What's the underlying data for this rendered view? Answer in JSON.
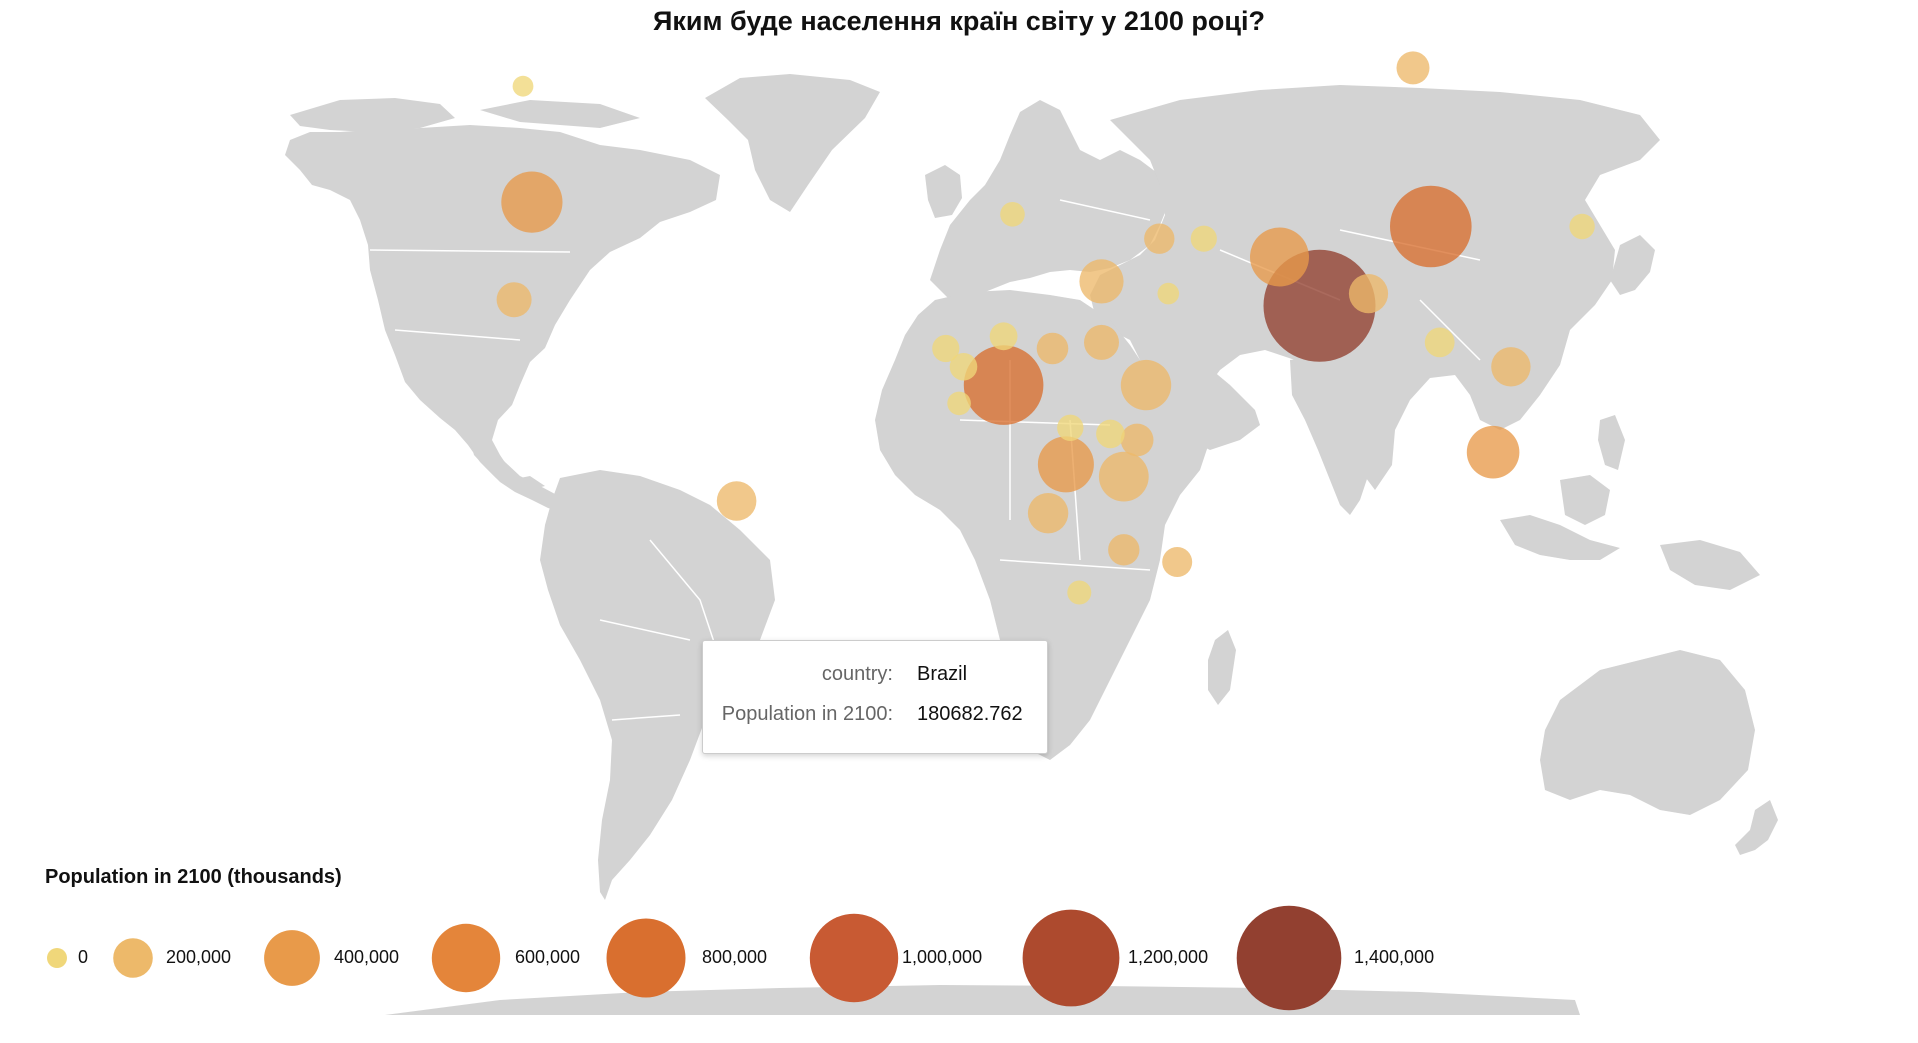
{
  "title": "Яким буде населення країн світу у 2100 році?",
  "colors": {
    "land": "#d3d3d3",
    "ramp": [
      "#f0d77a",
      "#edb96a",
      "#e89a4a",
      "#e4853a",
      "#d96f2f",
      "#c85a33",
      "#ad4a2e",
      "#924030"
    ]
  },
  "tooltip": {
    "country_key": "country:",
    "country_value": "Brazil",
    "population_key": "Population in 2100:",
    "population_value": "180682.762"
  },
  "legend": {
    "title": "Population in 2100 (thousands)",
    "items": [
      {
        "value": 0,
        "label": "0"
      },
      {
        "value": 200000,
        "label": "200,000"
      },
      {
        "value": 400000,
        "label": "400,000"
      },
      {
        "value": 600000,
        "label": "600,000"
      },
      {
        "value": 800000,
        "label": "800,000"
      },
      {
        "value": 1000000,
        "label": "1,000,000"
      },
      {
        "value": 1200000,
        "label": "1,200,000"
      },
      {
        "value": 1400000,
        "label": "1,400,000"
      }
    ]
  },
  "chart_data": {
    "type": "bubble-map",
    "size_metric": "Population in 2100 (thousands)",
    "highlighted_country": "Brazil",
    "points": [
      {
        "lat": 22,
        "lon": 79,
        "value": 1450000
      },
      {
        "lat": 35,
        "lon": 104,
        "value": 771000
      },
      {
        "lat": 9,
        "lon": 8,
        "value": 733000
      },
      {
        "lat": 30,
        "lon": 70,
        "value": 403000
      },
      {
        "lat": 39,
        "lon": -98,
        "value": 434000
      },
      {
        "lat": -4,
        "lon": 22,
        "value": 362000
      },
      {
        "lat": 9,
        "lon": 40,
        "value": 294000
      },
      {
        "lat": -6,
        "lon": 35,
        "value": 286000
      },
      {
        "lat": -2,
        "lon": 118,
        "value": 321000
      },
      {
        "lat": 26,
        "lon": 30,
        "value": 225000
      },
      {
        "lat": -12,
        "lon": 18,
        "value": 188000
      },
      {
        "lat": -10,
        "lon": -52,
        "value": 180683
      },
      {
        "lat": 12,
        "lon": 122,
        "value": 180000
      },
      {
        "lat": 24,
        "lon": 90,
        "value": 177000
      },
      {
        "lat": 23,
        "lon": -102,
        "value": 141000
      },
      {
        "lat": 16,
        "lon": 30,
        "value": 142000
      },
      {
        "lat": 15,
        "lon": 19,
        "value": 115000
      },
      {
        "lat": 61,
        "lon": 100,
        "value": 126000
      },
      {
        "lat": 16,
        "lon": 106,
        "value": 103000
      },
      {
        "lat": 0,
        "lon": 38,
        "value": 125000
      },
      {
        "lat": 17,
        "lon": 8,
        "value": 89000
      },
      {
        "lat": 33,
        "lon": 53,
        "value": 79000
      },
      {
        "lat": 33,
        "lon": 43,
        "value": 107000
      },
      {
        "lat": 1,
        "lon": 32,
        "value": 94000
      },
      {
        "lat": -18,
        "lon": 35,
        "value": 114000
      },
      {
        "lat": 12,
        "lon": -1,
        "value": 88000
      },
      {
        "lat": -20,
        "lon": 47,
        "value": 104000
      },
      {
        "lat": 2,
        "lon": 23,
        "value": 80000
      },
      {
        "lat": 15,
        "lon": -5,
        "value": 86000
      },
      {
        "lat": 35,
        "lon": 138,
        "value": 75000
      },
      {
        "lat": 37,
        "lon": 10,
        "value": 70000
      },
      {
        "lat": 6,
        "lon": -2,
        "value": 64000
      },
      {
        "lat": 24,
        "lon": 45,
        "value": 54000
      },
      {
        "lat": 58,
        "lon": -100,
        "value": 50000
      },
      {
        "lat": -25,
        "lon": 25,
        "value": 67000
      }
    ]
  }
}
